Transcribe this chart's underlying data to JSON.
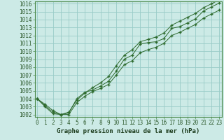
{
  "title": "Graphe pression niveau de la mer (hPa)",
  "bg_color": "#cceae6",
  "grid_color": "#99ccc7",
  "line_color": "#2d6a2d",
  "x_values": [
    0,
    1,
    2,
    3,
    4,
    5,
    6,
    7,
    8,
    9,
    10,
    11,
    12,
    13,
    14,
    15,
    16,
    17,
    18,
    19,
    20,
    21,
    22,
    23
  ],
  "line1": [
    1004.0,
    1003.3,
    1002.5,
    1002.0,
    1002.2,
    1004.0,
    1004.8,
    1005.1,
    1005.6,
    1006.2,
    1007.5,
    1009.0,
    1009.5,
    1010.9,
    1011.1,
    1011.2,
    1011.6,
    1012.9,
    1013.1,
    1013.6,
    1014.1,
    1015.1,
    1015.6,
    1016.1
  ],
  "line2": [
    1004.0,
    1003.1,
    1002.3,
    1002.0,
    1002.0,
    1003.5,
    1004.3,
    1004.9,
    1005.3,
    1005.8,
    1007.0,
    1008.3,
    1008.8,
    1009.8,
    1010.2,
    1010.5,
    1011.0,
    1012.0,
    1012.4,
    1012.9,
    1013.4,
    1014.2,
    1014.7,
    1015.2
  ],
  "line3": [
    1004.0,
    1003.0,
    1002.1,
    1002.0,
    1002.3,
    1003.8,
    1004.7,
    1005.4,
    1006.0,
    1006.8,
    1008.2,
    1009.5,
    1010.2,
    1011.2,
    1011.5,
    1011.8,
    1012.3,
    1013.3,
    1013.8,
    1014.3,
    1014.8,
    1015.5,
    1016.0,
    1016.5
  ],
  "ylim_min": 1002,
  "ylim_max": 1016,
  "tick_fontsize": 5.5,
  "title_fontsize": 6.5
}
